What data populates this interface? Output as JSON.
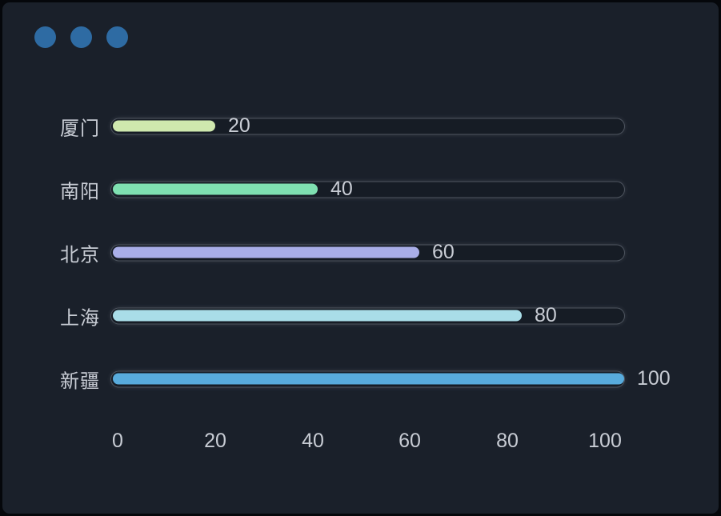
{
  "window": {
    "background_color": "#1a202a",
    "frame_color": "#05070b",
    "control_dot_color": "#2e6ba3",
    "control_dot_count": 3
  },
  "chart_data": {
    "type": "bar",
    "orientation": "horizontal",
    "title": "",
    "xlabel": "",
    "ylabel": "",
    "categories": [
      "厦门",
      "南阳",
      "北京",
      "上海",
      "新疆"
    ],
    "values": [
      20,
      40,
      60,
      80,
      100
    ],
    "value_labels": [
      "20",
      "40",
      "60",
      "80",
      "100"
    ],
    "bar_colors": [
      "#cfe8ae",
      "#7fe0b1",
      "#a9aee8",
      "#a9dde8",
      "#58abdc"
    ],
    "x_ticks": [
      "0",
      "20",
      "40",
      "60",
      "80",
      "100"
    ],
    "x_tick_values": [
      0,
      20,
      40,
      60,
      80,
      100
    ],
    "xlim": [
      0,
      100
    ],
    "grid": false,
    "legend": false,
    "text_color": "#c8ccd4",
    "track_background": "#161c25",
    "track_border_color": "rgba(185,192,206,0.34)"
  }
}
